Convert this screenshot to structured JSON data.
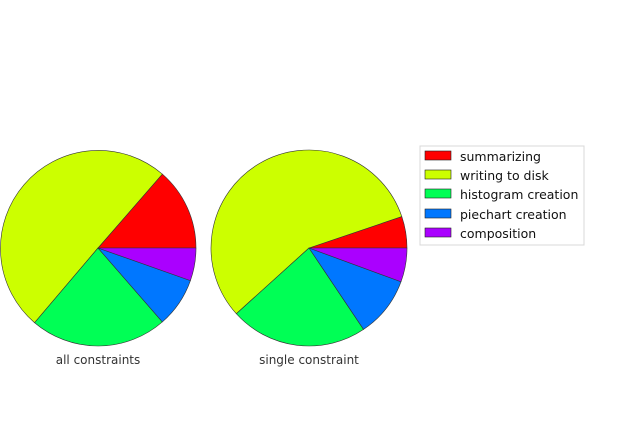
{
  "chart_data": [
    {
      "type": "pie",
      "xlabel": "all constraints",
      "categories": [
        "summarizing",
        "writing to disk",
        "histogram creation",
        "piechart creation",
        "composition"
      ],
      "values": [
        13.6,
        50.2,
        22.6,
        8.2,
        5.4
      ],
      "start_angle_deg": 0,
      "direction": "counterclockwise"
    },
    {
      "type": "pie",
      "xlabel": "single constraint",
      "categories": [
        "summarizing",
        "writing to disk",
        "histogram creation",
        "piechart creation",
        "composition"
      ],
      "values": [
        5.2,
        56.5,
        22.7,
        10.0,
        5.6
      ],
      "start_angle_deg": 0,
      "direction": "counterclockwise"
    }
  ],
  "legend": {
    "placement": "right",
    "entries": [
      {
        "label": "summarizing",
        "color": "#ff0000"
      },
      {
        "label": "writing to disk",
        "color": "#ccff00"
      },
      {
        "label": "histogram creation",
        "color": "#00ff55"
      },
      {
        "label": "piechart creation",
        "color": "#0077ff"
      },
      {
        "label": "composition",
        "color": "#aa00ff"
      }
    ]
  }
}
